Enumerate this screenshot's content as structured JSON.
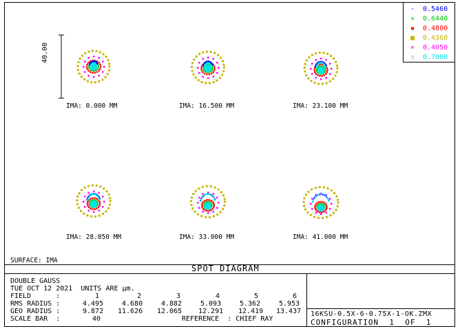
{
  "legend": [
    {
      "label": "0.5460",
      "symbol": "dot",
      "glyph": "·",
      "color": "#0000ff"
    },
    {
      "label": "0.6440",
      "symbol": "x",
      "glyph": "×",
      "color": "#00c000"
    },
    {
      "label": "0.4800",
      "symbol": "square",
      "glyph": "▪",
      "color": "#ff0000"
    },
    {
      "label": "0.4360",
      "symbol": "square",
      "glyph": "■",
      "color": "#c8b400"
    },
    {
      "label": "0.4050",
      "symbol": "x",
      "glyph": "×",
      "color": "#ff00ff"
    },
    {
      "label": "0.7060",
      "symbol": "dot",
      "glyph": "▫",
      "color": "#00e6e6"
    }
  ],
  "scale_bar": {
    "label": "40.00"
  },
  "fields": [
    {
      "caption": "IMA: 0.000 MM",
      "shift": 0
    },
    {
      "caption": "IMA: 16.500 MM",
      "shift": 1
    },
    {
      "caption": "IMA: 23.100 MM",
      "shift": 2
    },
    {
      "caption": "IMA: 28.050 MM",
      "shift": 3
    },
    {
      "caption": "IMA: 33.000 MM",
      "shift": 4
    },
    {
      "caption": "IMA: 41.000 MM",
      "shift": 5
    }
  ],
  "surface_label": "SURFACE: IMA",
  "diagram_title": "SPOT DIAGRAM",
  "info": {
    "lens_name": "DOUBLE GAUSS",
    "date_line": "TUE OCT 12 2021  UNITS ARE µm.",
    "field_label": "FIELD      :",
    "field_values": [
      "1",
      "2",
      "3",
      "4",
      "5",
      "6"
    ],
    "rms_label": "RMS RADIUS :",
    "rms_values": [
      "4.495",
      "4.680",
      "4.882",
      "5.093",
      "5.362",
      "5.953"
    ],
    "geo_label": "GEO RADIUS :",
    "geo_values": [
      "9.872",
      "11.626",
      "12.065",
      "12.291",
      "12.419",
      "13.437"
    ],
    "scale_label": "SCALE BAR  :",
    "scale_value": "40",
    "reference_text": "REFERENCE  : CHIEF RAY"
  },
  "file_name": "16KSU-0.5X-6-0.75X-1-OK.ZMX",
  "configuration": "CONFIGURATION  1  OF  1"
}
